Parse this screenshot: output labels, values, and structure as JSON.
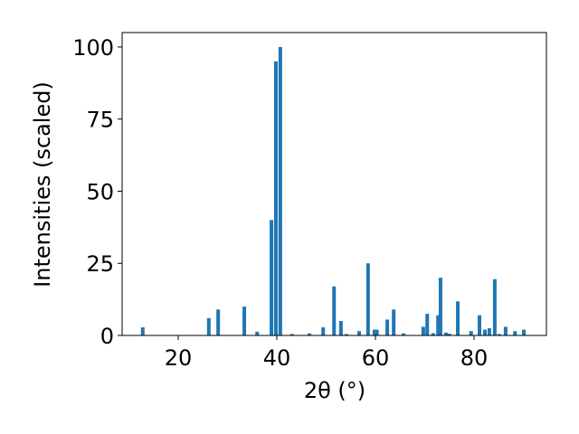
{
  "chart_data": {
    "type": "bar",
    "xlabel": "2θ (°)",
    "ylabel": "Intensities (scaled)",
    "x": [
      12.8,
      26.2,
      28.1,
      33.4,
      36.0,
      38.9,
      39.8,
      40.7,
      43.1,
      46.6,
      49.4,
      51.6,
      53.0,
      54.1,
      56.7,
      58.5,
      59.8,
      60.3,
      62.4,
      63.7,
      65.7,
      69.7,
      70.5,
      71.7,
      72.7,
      73.2,
      74.3,
      75.0,
      76.7,
      79.4,
      81.1,
      82.2,
      83.1,
      84.2,
      85.1,
      86.4,
      88.3,
      90.1
    ],
    "values": [
      2.8,
      6,
      9,
      10,
      1.3,
      40,
      95,
      100,
      0.5,
      0.7,
      2.8,
      17,
      5,
      0.5,
      1.5,
      25,
      2,
      2,
      5.5,
      9,
      0.7,
      3,
      7.5,
      0.8,
      7,
      20,
      1,
      0.6,
      11.8,
      1.5,
      7,
      2,
      2.5,
      19.5,
      0.5,
      3,
      1.5,
      2
    ],
    "color": "#1f77b4",
    "xlim": [
      8.62,
      94.68
    ],
    "xticks": [
      20,
      40,
      60,
      80
    ],
    "ylim": [
      0,
      105
    ],
    "yticks": [
      0,
      25,
      50,
      75,
      100
    ]
  }
}
